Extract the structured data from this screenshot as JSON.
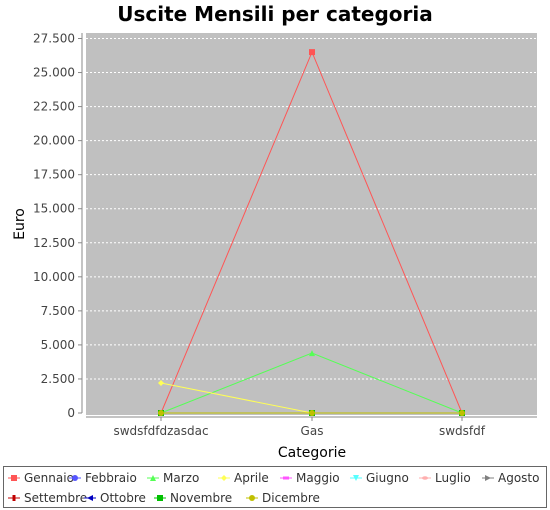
{
  "chart_data": {
    "type": "line",
    "title": "Uscite Mensili per categoria",
    "xlabel": "Categorie",
    "ylabel": "Euro",
    "categories": [
      "swdsfdfdzasdac",
      "Gas",
      "swdsfdf"
    ],
    "ylim": [
      0,
      28000
    ],
    "yticks": [
      "0",
      "2.500",
      "5.000",
      "7.500",
      "10.000",
      "12.500",
      "15.000",
      "17.500",
      "20.000",
      "22.500",
      "25.000",
      "27.500"
    ],
    "grid": true,
    "plot_background": "#c0c0c0",
    "legend_position": "bottom",
    "series": [
      {
        "name": "Gennaio",
        "values": [
          0,
          26500,
          0
        ],
        "color": "#ff5555",
        "marker": "square"
      },
      {
        "name": "Febbraio",
        "values": [
          0,
          0,
          0
        ],
        "color": "#5555ff",
        "marker": "circle"
      },
      {
        "name": "Marzo",
        "values": [
          0,
          4400,
          0
        ],
        "color": "#55ff55",
        "marker": "triangle-up"
      },
      {
        "name": "Aprile",
        "values": [
          2200,
          0,
          0
        ],
        "color": "#ffff55",
        "marker": "diamond"
      },
      {
        "name": "Maggio",
        "values": [
          0,
          0,
          0
        ],
        "color": "#ff55ff",
        "marker": "rect-h"
      },
      {
        "name": "Giugno",
        "values": [
          0,
          0,
          0
        ],
        "color": "#55ffff",
        "marker": "triangle-down"
      },
      {
        "name": "Luglio",
        "values": [
          0,
          0,
          0
        ],
        "color": "#ffafaf",
        "marker": "ellipse"
      },
      {
        "name": "Agosto",
        "values": [
          0,
          0,
          0
        ],
        "color": "#808080",
        "marker": "triangle-right"
      },
      {
        "name": "Settembre",
        "values": [
          0,
          0,
          0
        ],
        "color": "#c00000",
        "marker": "rect-v"
      },
      {
        "name": "Ottobre",
        "values": [
          0,
          0,
          0
        ],
        "color": "#0000c0",
        "marker": "triangle-left"
      },
      {
        "name": "Novembre",
        "values": [
          0,
          0,
          0
        ],
        "color": "#00c000",
        "marker": "square"
      },
      {
        "name": "Dicembre",
        "values": [
          0,
          0,
          0
        ],
        "color": "#c0c000",
        "marker": "circle"
      }
    ]
  }
}
